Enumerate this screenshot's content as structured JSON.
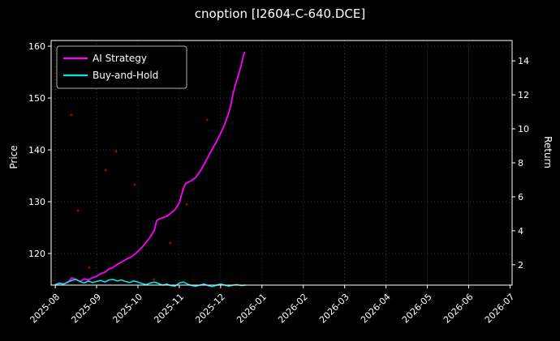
{
  "title": "cnoption [I2604-C-640.DCE]",
  "axes": {
    "left_label": "Price",
    "right_label": "Return",
    "x_ticks": [
      "2025-08",
      "2025-09",
      "2025-10",
      "2025-11",
      "2025-12",
      "2026-01",
      "2026-02",
      "2026-03",
      "2026-04",
      "2026-05",
      "2026-06",
      "2026-07"
    ],
    "left_ticks": [
      120,
      130,
      140,
      150,
      160
    ],
    "right_ticks": [
      2,
      4,
      6,
      8,
      10,
      12,
      14
    ]
  },
  "colors": {
    "background": "#000000",
    "text": "#ffffff",
    "grid": "#aaaaaa",
    "frame": "#ffffff",
    "legend_border": "#b0b0b0"
  },
  "chart_data": {
    "type": "line",
    "title": "cnoption [I2604-C-640.DCE]",
    "xlabel": "",
    "ylabel_left": "Price",
    "ylabel_right": "Return",
    "x_unit": "months since 2025-08",
    "xlim": [
      -0.1,
      11.05
    ],
    "price_ylim": [
      113.9,
      161.1
    ],
    "return_ylim": [
      0.8,
      15.2
    ],
    "grid": true,
    "grid_style": "dotted",
    "legend_position": "upper left",
    "x_tick_labels": [
      "2025-08",
      "2025-09",
      "2025-10",
      "2025-11",
      "2025-12",
      "2026-01",
      "2026-02",
      "2026-03",
      "2026-04",
      "2026-05",
      "2026-06",
      "2026-07"
    ],
    "series": [
      {
        "name": "AI Strategy",
        "color": "#ff00ff",
        "axis": "price",
        "kind": "line",
        "width": 1.8,
        "in_legend": true,
        "x": [
          0,
          0.1,
          0.2,
          0.3,
          0.4,
          0.5,
          0.6,
          0.7,
          0.8,
          0.9,
          1.0,
          1.1,
          1.2,
          1.3,
          1.4,
          1.5,
          1.6,
          1.7,
          1.8,
          1.9,
          2.0,
          2.1,
          2.2,
          2.3,
          2.4,
          2.45,
          2.5,
          2.6,
          2.7,
          2.8,
          2.9,
          3.0,
          3.05,
          3.1,
          3.15,
          3.2,
          3.3,
          3.4,
          3.5,
          3.6,
          3.7,
          3.8,
          3.9,
          4.0,
          4.1,
          4.2,
          4.25,
          4.3,
          4.35,
          4.4,
          4.45,
          4.5,
          4.55,
          4.58
        ],
        "y": [
          113.9,
          114.2,
          114.1,
          114.4,
          115.3,
          115.0,
          114.6,
          115.1,
          114.9,
          115.3,
          115.6,
          116.1,
          116.4,
          117.0,
          117.3,
          117.9,
          118.3,
          118.8,
          119.2,
          119.7,
          120.4,
          121.2,
          122.2,
          123.2,
          124.6,
          126.3,
          126.6,
          126.9,
          127.2,
          127.8,
          128.5,
          129.8,
          131.2,
          132.6,
          133.5,
          133.7,
          134.1,
          134.7,
          135.8,
          137.2,
          138.7,
          140.2,
          141.6,
          143.2,
          145.0,
          147.2,
          148.8,
          150.8,
          152.4,
          153.6,
          155.0,
          156.4,
          158.2,
          158.8
        ]
      },
      {
        "name": "Buy-and-Hold",
        "color": "#00e5e5",
        "axis": "price",
        "kind": "line",
        "width": 1.6,
        "in_legend": true,
        "x": [
          0,
          0.1,
          0.2,
          0.3,
          0.4,
          0.5,
          0.6,
          0.7,
          0.8,
          0.9,
          1.0,
          1.1,
          1.2,
          1.3,
          1.4,
          1.5,
          1.6,
          1.7,
          1.8,
          1.9,
          2.0,
          2.1,
          2.2,
          2.3,
          2.4,
          2.5,
          2.6,
          2.7,
          2.8,
          2.9,
          3.0,
          3.1,
          3.2,
          3.3,
          3.4,
          3.5,
          3.6,
          3.7,
          3.8,
          3.9,
          4.0,
          4.1,
          4.2,
          4.3,
          4.4,
          4.5,
          4.6
        ],
        "y": [
          114.0,
          114.3,
          114.1,
          114.5,
          114.8,
          115.0,
          114.6,
          114.3,
          114.7,
          114.4,
          114.6,
          114.8,
          114.5,
          114.9,
          115.0,
          114.7,
          114.9,
          114.6,
          114.4,
          114.7,
          114.5,
          114.2,
          114.0,
          114.3,
          114.5,
          114.2,
          113.9,
          114.1,
          113.8,
          113.7,
          114.3,
          114.5,
          114.1,
          113.8,
          113.7,
          113.9,
          114.1,
          113.8,
          113.6,
          113.9,
          114.1,
          113.9,
          113.7,
          113.9,
          114.0,
          113.8,
          113.9
        ]
      },
      {
        "name": "signals",
        "color": "#b00000",
        "axis": "price",
        "kind": "scatter",
        "in_legend": false,
        "x": [
          0.39,
          0.55,
          0.82,
          1.22,
          1.47,
          1.92,
          2.39,
          2.78,
          3.18,
          3.67
        ],
        "y": [
          146.7,
          128.3,
          117.3,
          136.1,
          139.7,
          133.3,
          115.0,
          122.0,
          129.5,
          145.8
        ]
      }
    ]
  }
}
